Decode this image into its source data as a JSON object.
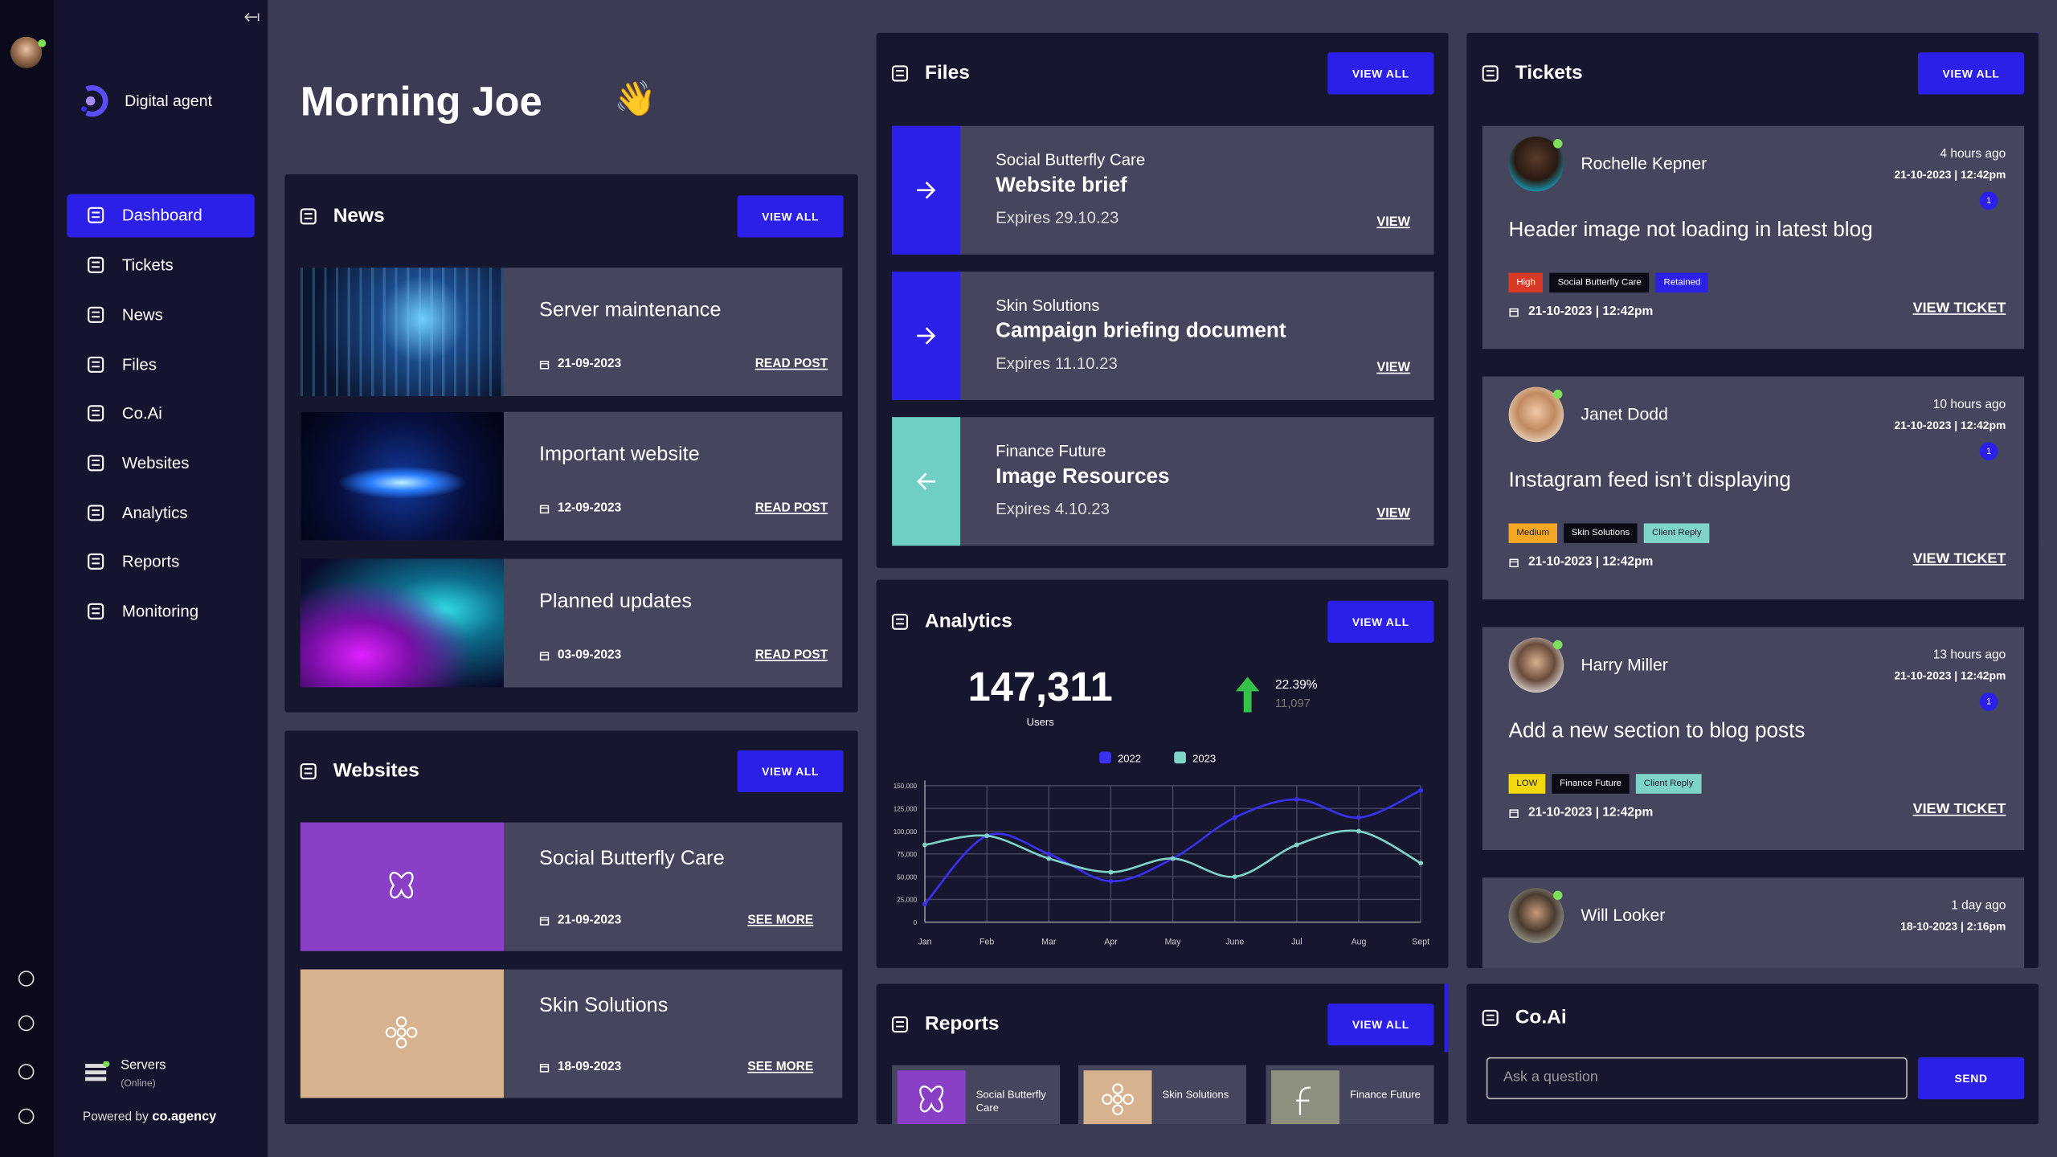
{
  "sidebar": {
    "brand": "Digital agent",
    "nav": [
      "Dashboard",
      "Tickets",
      "News",
      "Files",
      "Co.Ai",
      "Websites",
      "Analytics",
      "Reports",
      "Monitoring"
    ],
    "servers": "Servers",
    "servers_status": "(Online)",
    "powered_by": "Powered by",
    "powered_brand": "co.agency"
  },
  "greeting": {
    "text": "Morning Joe",
    "emoji": "👋"
  },
  "news": {
    "title": "News",
    "button": "VIEW ALL",
    "items": [
      {
        "title": "Server maintenance",
        "date": "21-09-2023",
        "link": "READ POST"
      },
      {
        "title": "Important website",
        "date": "12-09-2023",
        "link": "READ POST"
      },
      {
        "title": "Planned updates",
        "date": "03-09-2023",
        "link": "READ POST"
      }
    ]
  },
  "websites": {
    "title": "Websites",
    "button": "VIEW ALL",
    "items": [
      {
        "title": "Social Butterfly Care",
        "date": "21-09-2023",
        "link": "SEE MORE"
      },
      {
        "title": "Skin Solutions",
        "date": "18-09-2023",
        "link": "SEE MORE"
      }
    ]
  },
  "files": {
    "title": "Files",
    "button": "VIEW ALL",
    "items": [
      {
        "client": "Social Butterfly Care",
        "title": "Website brief",
        "expires": "Expires 29.10.23",
        "link": "VIEW",
        "color": "#2b1fe8"
      },
      {
        "client": "Skin Solutions",
        "title": "Campaign briefing document",
        "expires": "Expires 11.10.23",
        "link": "VIEW",
        "color": "#2b1fe8"
      },
      {
        "client": "Finance Future",
        "title": "Image Resources",
        "expires": "Expires 4.10.23",
        "link": "VIEW",
        "color": "#6fcfc4"
      }
    ]
  },
  "analytics": {
    "title": "Analytics",
    "button": "VIEW ALL",
    "total": "147,311",
    "total_label": "Users",
    "change": "22.39%",
    "previous": "11,097",
    "chart": {
      "type": "line",
      "categories": [
        "Jan",
        "Feb",
        "Mar",
        "Apr",
        "May",
        "June",
        "Jul",
        "Aug",
        "Sept"
      ],
      "series": [
        {
          "name": "2022",
          "color": "#3b2ff0",
          "values": [
            20000,
            95000,
            75000,
            45000,
            70000,
            115000,
            135000,
            115000,
            145000
          ]
        },
        {
          "name": "2023",
          "color": "#7fd4c9",
          "values": [
            85000,
            95000,
            70000,
            55000,
            70000,
            50000,
            85000,
            100000,
            65000
          ]
        }
      ],
      "ylim": [
        0,
        150000
      ],
      "yticks": [
        0,
        {
          "value": 25000,
          "label": "25,000"
        },
        {
          "value": 50000,
          "label": "50,000"
        },
        {
          "value": 75000,
          "label": "75,000"
        },
        {
          "value": 100000,
          "label": "100,000"
        },
        {
          "value": 125000,
          "label": "125,000"
        },
        {
          "value": 150000,
          "label": "150,000"
        }
      ],
      "grid": true
    }
  },
  "reports": {
    "title": "Reports",
    "button": "VIEW ALL",
    "items": [
      "Social Butterfly Care",
      "Skin Solutions",
      "Finance Future"
    ]
  },
  "tickets": {
    "title": "Tickets",
    "button": "VIEW ALL",
    "items": [
      {
        "name": "Rochelle Kepner",
        "time_ago": "4 hours ago",
        "date": "21-10-2023 | 12:42pm",
        "count": "1",
        "subject": "Header image not loading in latest blog",
        "tags": [
          {
            "label": "High",
            "color": "#d93a26"
          },
          {
            "label": "Social Butterfly Care",
            "color": "#0b0b16"
          },
          {
            "label": "Retained",
            "color": "#2b1fe8"
          }
        ],
        "created": "21-10-2023 | 12:42pm",
        "link": "VIEW TICKET"
      },
      {
        "name": "Janet Dodd",
        "time_ago": "10 hours ago",
        "date": "21-10-2023 | 12:42pm",
        "count": "1",
        "subject": "Instagram feed isn’t displaying",
        "tags": [
          {
            "label": "Medium",
            "color": "#f5a623"
          },
          {
            "label": "Skin Solutions",
            "color": "#0b0b16"
          },
          {
            "label": "Client Reply",
            "color": "#7fd4c9"
          }
        ],
        "created": "21-10-2023 | 12:42pm",
        "link": "VIEW TICKET"
      },
      {
        "name": "Harry Miller",
        "time_ago": "13 hours ago",
        "date": "21-10-2023 | 12:42pm",
        "count": "1",
        "subject": "Add a new section to blog posts",
        "tags": [
          {
            "label": "LOW",
            "color": "#f2d80c"
          },
          {
            "label": "Finance Future",
            "color": "#0b0b16"
          },
          {
            "label": "Client Reply",
            "color": "#7fd4c9"
          }
        ],
        "created": "21-10-2023 | 12:42pm",
        "link": "VIEW TICKET"
      },
      {
        "name": "Will Looker",
        "time_ago": "1 day ago",
        "date": "18-10-2023 | 2:16pm"
      }
    ]
  },
  "coai": {
    "title": "Co.Ai",
    "placeholder": "Ask a question",
    "button": "SEND"
  }
}
